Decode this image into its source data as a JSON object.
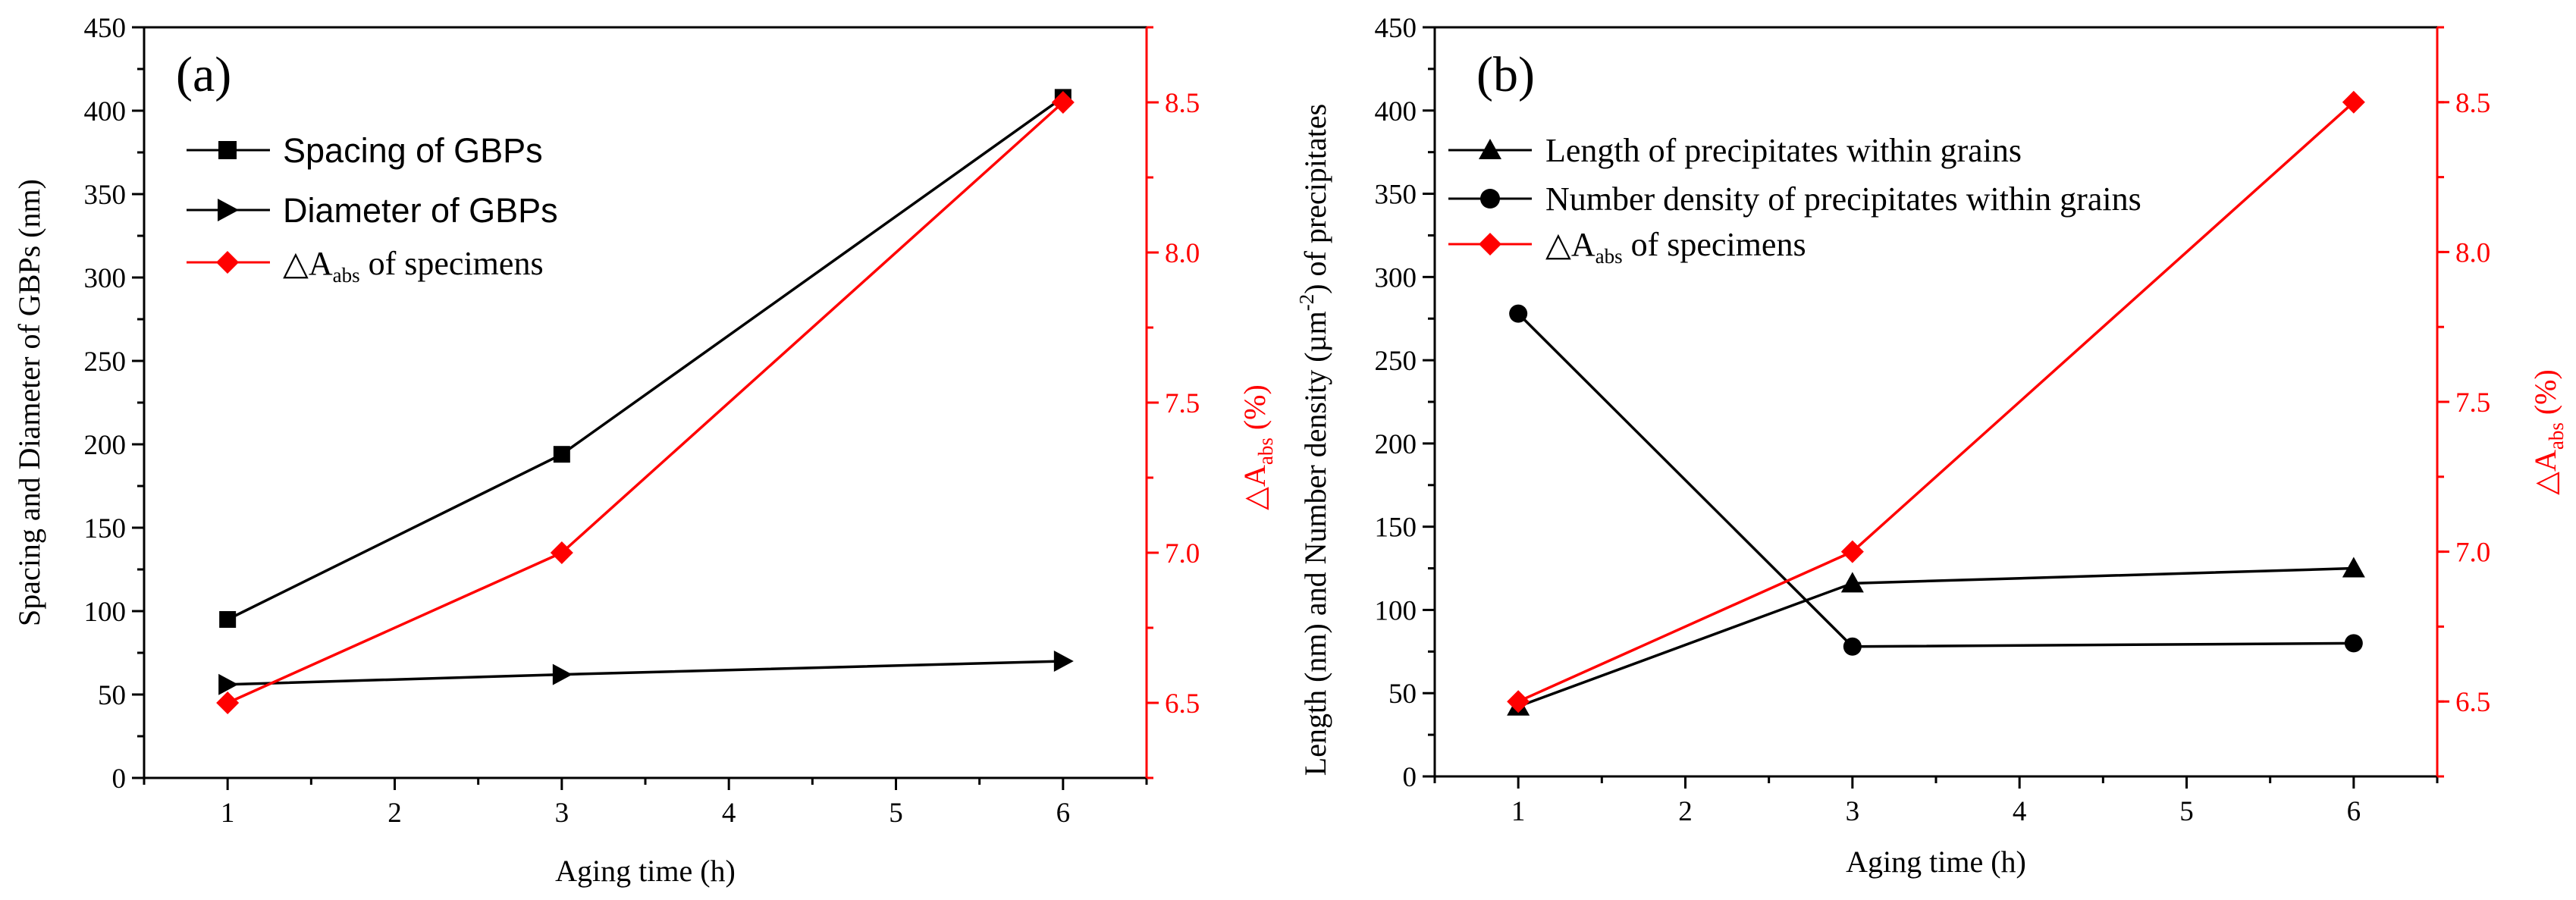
{
  "colors": {
    "black": "#000000",
    "red": "#ff0000"
  },
  "chart_data": [
    {
      "type": "line",
      "panel_label": "(a)",
      "xlabel": "Aging time (h)",
      "ylabel": "Spacing and Diameter of GBPs (nm)",
      "y2label": {
        "prefix": "△A",
        "sub": "abs",
        "suffix": " (%)"
      },
      "xlim": [
        0.5,
        6.5
      ],
      "ylim": [
        0,
        450
      ],
      "y2lim": [
        6.25,
        8.75
      ],
      "x_ticks": [
        "1",
        "2",
        "3",
        "4",
        "5",
        "6"
      ],
      "y_ticks": [
        "0",
        "50",
        "100",
        "150",
        "200",
        "250",
        "300",
        "350",
        "400",
        "450"
      ],
      "y2_ticks": [
        "6.5",
        "7.0",
        "7.5",
        "8.0",
        "8.5"
      ],
      "x": [
        1,
        3,
        6
      ],
      "series": [
        {
          "name": "Spacing of GBPs",
          "axis": "left",
          "marker": "square",
          "color": "#000000",
          "values": [
            95,
            194,
            408
          ]
        },
        {
          "name": "Diameter of GBPs",
          "axis": "left",
          "marker": "triangle-right",
          "color": "#000000",
          "values": [
            56,
            62,
            70
          ]
        },
        {
          "name": "△A",
          "name_sub": "abs",
          "name_suffix": " of specimens",
          "axis": "right",
          "marker": "diamond",
          "color": "#ff0000",
          "values": [
            6.5,
            7.0,
            8.5
          ]
        }
      ]
    },
    {
      "type": "line",
      "panel_label": "(b)",
      "xlabel": "Aging time (h)",
      "ylabel": {
        "prefix": "Length (nm) and Number density (µm",
        "sup": "-2",
        "suffix": ") of precipitates"
      },
      "y2label": {
        "prefix": "△A",
        "sub": "abs",
        "suffix": " (%)"
      },
      "xlim": [
        0.5,
        6.5
      ],
      "ylim": [
        0,
        450
      ],
      "y2lim": [
        6.25,
        8.75
      ],
      "x_ticks": [
        "1",
        "2",
        "3",
        "4",
        "5",
        "6"
      ],
      "y_ticks": [
        "0",
        "50",
        "100",
        "150",
        "200",
        "250",
        "300",
        "350",
        "400",
        "450"
      ],
      "y2_ticks": [
        "6.5",
        "7.0",
        "7.5",
        "8.0",
        "8.5"
      ],
      "x": [
        1,
        3,
        6
      ],
      "series": [
        {
          "name": "Length of precipitates within grains",
          "axis": "left",
          "marker": "triangle-up",
          "color": "#000000",
          "values": [
            42,
            116,
            125
          ]
        },
        {
          "name": "Number density of precipitates within grains",
          "axis": "left",
          "marker": "circle",
          "color": "#000000",
          "values": [
            278,
            78,
            80
          ]
        },
        {
          "name": "△A",
          "name_sub": "abs",
          "name_suffix": " of specimens",
          "axis": "right",
          "marker": "diamond",
          "color": "#ff0000",
          "values": [
            6.5,
            7.0,
            8.5
          ]
        }
      ]
    }
  ]
}
